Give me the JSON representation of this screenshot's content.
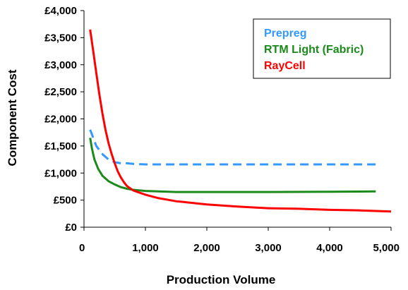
{
  "chart_data": {
    "type": "line",
    "title": "",
    "xlabel": "Production Volume",
    "ylabel": "Component Cost",
    "xlim": [
      0,
      5000
    ],
    "ylim": [
      0,
      4000
    ],
    "grid": false,
    "legend_position": "top-right",
    "x_ticks": [
      "0",
      "1,000",
      "2,000",
      "3,000",
      "4,000",
      "5,000"
    ],
    "y_ticks": [
      "£0",
      "£500",
      "£1,000",
      "£1,500",
      "£2,000",
      "£2,500",
      "£3,000",
      "£3,500",
      "£4,000"
    ],
    "series": [
      {
        "name": "Prepreg",
        "color": "#3399ff",
        "dash": "dashed",
        "x": [
          100,
          150,
          200,
          300,
          400,
          500,
          600,
          700,
          800,
          1000,
          1500,
          2000,
          3000,
          4000,
          4750
        ],
        "y": [
          1800,
          1650,
          1500,
          1350,
          1250,
          1200,
          1180,
          1180,
          1170,
          1160,
          1160,
          1160,
          1160,
          1160,
          1160
        ]
      },
      {
        "name": "RTM Light (Fabric)",
        "color": "#1a8a1a",
        "dash": "solid",
        "x": [
          100,
          130,
          170,
          230,
          300,
          400,
          500,
          600,
          700,
          800,
          1000,
          1500,
          2000,
          3000,
          4000,
          4750
        ],
        "y": [
          1650,
          1450,
          1250,
          1080,
          950,
          850,
          790,
          740,
          710,
          690,
          670,
          650,
          650,
          650,
          655,
          660
        ]
      },
      {
        "name": "RayCell",
        "color": "#ff0000",
        "dash": "solid",
        "x": [
          100,
          150,
          200,
          250,
          300,
          350,
          400,
          450,
          500,
          550,
          600,
          650,
          700,
          800,
          900,
          1000,
          1200,
          1500,
          2000,
          2500,
          3000,
          3500,
          4000,
          4500,
          5000
        ],
        "y": [
          3650,
          3250,
          2850,
          2450,
          2100,
          1800,
          1550,
          1350,
          1180,
          1030,
          920,
          830,
          760,
          680,
          640,
          600,
          540,
          480,
          420,
          380,
          350,
          340,
          320,
          310,
          290
        ]
      }
    ]
  }
}
